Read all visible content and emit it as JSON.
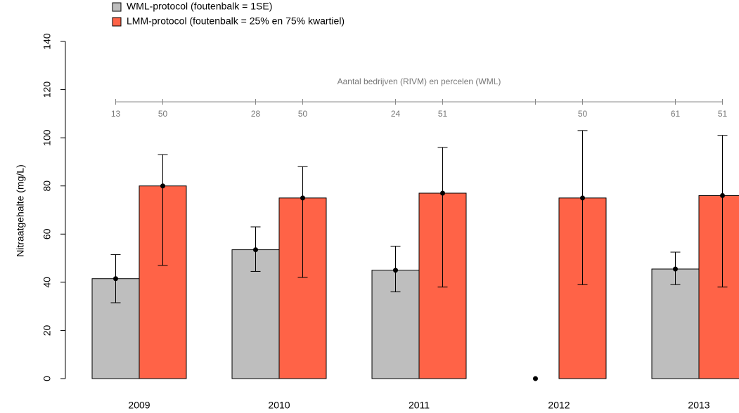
{
  "chart_data": {
    "type": "bar",
    "y_label": "Nitraatgehalte (mg/L)",
    "annotation": "Aantal bedrijven (RIVM) en percelen (WML)",
    "categories": [
      "2009",
      "2010",
      "2011",
      "2012",
      "2013"
    ],
    "series": [
      {
        "name": "WML-protocol (foutenbalk = 1SE)",
        "color": "#bebebe",
        "values": [
          41.5,
          53.5,
          45,
          0,
          45.5
        ],
        "error_low": [
          31.5,
          44.5,
          36,
          null,
          39
        ],
        "error_high": [
          51.5,
          63,
          55,
          null,
          52.5
        ],
        "n": [
          13,
          28,
          24,
          null,
          61
        ]
      },
      {
        "name": "LMM-protocol (foutenbalk = 25% en 75% kwartiel)",
        "color": "#ff6347",
        "values": [
          80,
          75,
          77,
          75,
          76
        ],
        "error_low": [
          47,
          42,
          38,
          39,
          38
        ],
        "error_high": [
          93,
          88,
          96,
          103,
          101
        ],
        "n": [
          50,
          50,
          51,
          50,
          51
        ]
      }
    ],
    "ylim": [
      0,
      140
    ],
    "yticks": [
      0,
      20,
      40,
      60,
      80,
      100,
      120,
      140
    ]
  }
}
